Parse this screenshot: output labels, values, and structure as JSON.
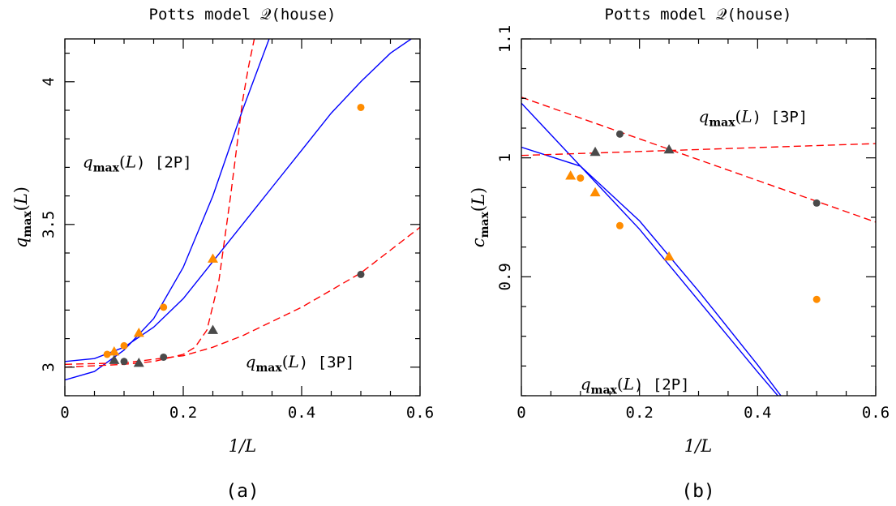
{
  "chart_data": [
    {
      "type": "line",
      "title": "Potts model 𝒬(house)",
      "subtitle": "(a)",
      "xlabel": "1/L",
      "ylabel": "q_max(L)",
      "xlim": [
        0,
        0.6
      ],
      "ylim": [
        2.9,
        4.15
      ],
      "xticks": [
        "0",
        "0.2",
        "0.4",
        "0.6"
      ],
      "yticks": [
        "3",
        "3.5",
        "4"
      ],
      "x_minor_step": 0.05,
      "y_minor_step": 0.1,
      "grid": false,
      "legend": "none",
      "annotations": [
        {
          "text": "q_max(L) [2P]",
          "x": 0.03,
          "y": 3.7
        },
        {
          "text": "q_max(L) [3P]",
          "x": 0.305,
          "y": 3.0
        }
      ],
      "series": [
        {
          "color": "#ff8c00",
          "marker": "circle",
          "style": "points",
          "x": [
            0.0714,
            0.1,
            0.1667,
            0.5
          ],
          "y": [
            3.045,
            3.075,
            3.21,
            3.91
          ]
        },
        {
          "color": "#ff8c00",
          "marker": "triangle",
          "style": "points",
          "x": [
            0.0833,
            0.125,
            0.25
          ],
          "y": [
            3.055,
            3.12,
            3.38
          ]
        },
        {
          "color": "#4a4a4a",
          "marker": "circle",
          "style": "points",
          "x": [
            0.1,
            0.1667,
            0.5
          ],
          "y": [
            3.02,
            3.035,
            3.325
          ]
        },
        {
          "color": "#4a4a4a",
          "marker": "triangle",
          "style": "points",
          "x": [
            0.0833,
            0.125,
            0.25
          ],
          "y": [
            3.025,
            3.015,
            3.13
          ]
        },
        {
          "color": "#0000ff",
          "dash": "solid",
          "style": "line",
          "x": [
            0,
            0.05,
            0.1,
            0.15,
            0.2,
            0.25,
            0.3,
            0.345
          ],
          "y": [
            2.955,
            2.985,
            3.06,
            3.17,
            3.35,
            3.6,
            3.9,
            4.15
          ]
        },
        {
          "color": "#0000ff",
          "dash": "solid",
          "style": "line",
          "x": [
            0,
            0.05,
            0.1,
            0.15,
            0.2,
            0.25,
            0.3,
            0.35,
            0.4,
            0.45,
            0.5,
            0.55,
            0.585
          ],
          "y": [
            3.02,
            3.03,
            3.07,
            3.14,
            3.24,
            3.37,
            3.5,
            3.63,
            3.76,
            3.89,
            4.0,
            4.1,
            4.15
          ]
        },
        {
          "color": "#ff0000",
          "dash": "dashed",
          "style": "line",
          "x": [
            0,
            0.1,
            0.15,
            0.2,
            0.22,
            0.24,
            0.26,
            0.28,
            0.3,
            0.31,
            0.32
          ],
          "y": [
            3.0,
            3.01,
            3.02,
            3.045,
            3.07,
            3.13,
            3.3,
            3.6,
            3.93,
            4.05,
            4.15
          ]
        },
        {
          "color": "#ff0000",
          "dash": "dashed",
          "style": "line",
          "x": [
            0,
            0.1,
            0.2,
            0.25,
            0.3,
            0.35,
            0.4,
            0.45,
            0.5,
            0.55,
            0.6
          ],
          "y": [
            3.01,
            3.015,
            3.04,
            3.07,
            3.11,
            3.16,
            3.21,
            3.27,
            3.33,
            3.41,
            3.49
          ]
        }
      ]
    },
    {
      "type": "line",
      "title": "Potts model 𝒬(house)",
      "subtitle": "(b)",
      "xlabel": "1/L",
      "ylabel": "c_max(L)",
      "xlim": [
        0,
        0.6
      ],
      "ylim": [
        0.8,
        1.1
      ],
      "xticks": [
        "0",
        "0.2",
        "0.4",
        "0.6"
      ],
      "yticks": [
        "0.9",
        "1",
        "1.1"
      ],
      "x_minor_step": 0.05,
      "y_minor_step": 0.025,
      "grid": false,
      "legend": "none",
      "annotations": [
        {
          "text": "q_max(L) [3P]",
          "x": 0.3,
          "y": 1.03
        },
        {
          "text": "q_max(L) [2P]",
          "x": 0.1,
          "y": 0.805
        }
      ],
      "series": [
        {
          "color": "#ff8c00",
          "marker": "circle",
          "style": "points",
          "x": [
            0.1,
            0.1667,
            0.5
          ],
          "y": [
            0.983,
            0.943,
            0.881
          ]
        },
        {
          "color": "#ff8c00",
          "marker": "triangle",
          "style": "points",
          "x": [
            0.0833,
            0.125,
            0.25
          ],
          "y": [
            0.985,
            0.971,
            0.917
          ]
        },
        {
          "color": "#4a4a4a",
          "marker": "circle",
          "style": "points",
          "x": [
            0.1667,
            0.5
          ],
          "y": [
            1.02,
            0.962
          ]
        },
        {
          "color": "#4a4a4a",
          "marker": "triangle",
          "style": "points",
          "x": [
            0.125,
            0.25
          ],
          "y": [
            1.005,
            1.007
          ]
        },
        {
          "color": "#0000ff",
          "dash": "solid",
          "style": "line",
          "x": [
            0,
            0.1,
            0.2,
            0.3,
            0.4,
            0.472
          ],
          "y": [
            1.046,
            0.993,
            0.94,
            0.88,
            0.82,
            0.778
          ]
        },
        {
          "color": "#0000ff",
          "dash": "solid",
          "style": "line",
          "x": [
            0,
            0.1,
            0.2,
            0.3,
            0.4,
            0.5,
            0.6
          ],
          "y": [
            1.009,
            0.993,
            0.947,
            0.888,
            0.826,
            0.76,
            0.69
          ]
        },
        {
          "color": "#ff0000",
          "dash": "dashed",
          "style": "line",
          "x": [
            0,
            0.6
          ],
          "y": [
            1.051,
            0.946
          ]
        },
        {
          "color": "#ff0000",
          "dash": "dashed",
          "style": "line",
          "x": [
            0,
            0.6
          ],
          "y": [
            1.002,
            1.012
          ]
        }
      ]
    }
  ]
}
